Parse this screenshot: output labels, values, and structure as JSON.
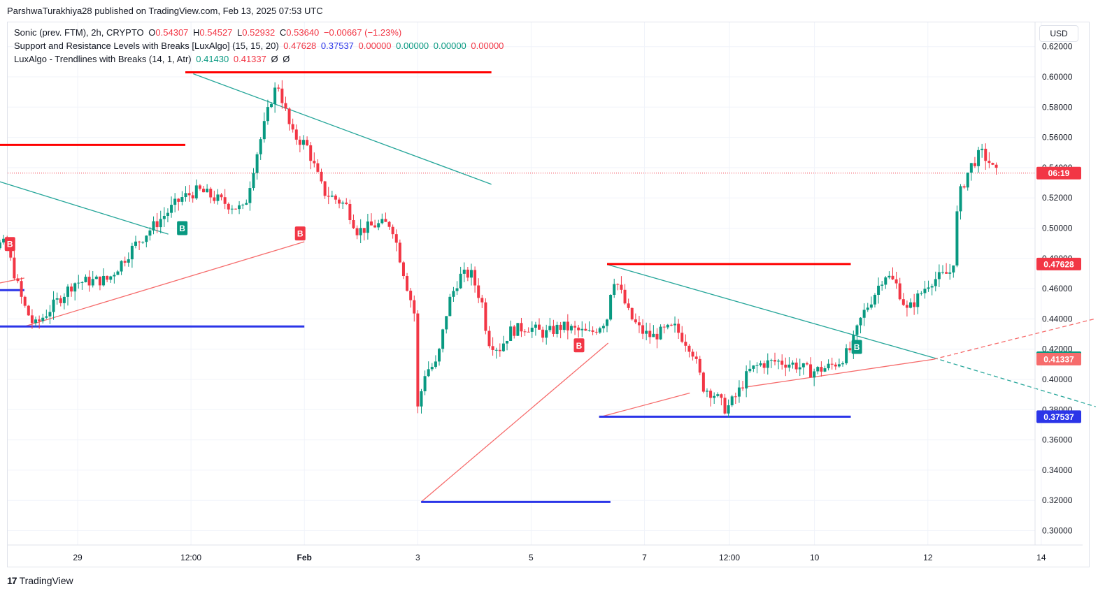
{
  "credit": "ParshwaTurakhiya28 published on TradingView.com, Feb 13, 2025 07:53 UTC",
  "legend": {
    "line1": {
      "symbol": "Sonic (prev. FTM), 2h, CRYPTO",
      "o_label": "O",
      "o": "0.54307",
      "h_label": "H",
      "h": "0.54527",
      "l_label": "L",
      "l": "0.52932",
      "c_label": "C",
      "c": "0.53640",
      "change": "−0.00667 (−1.23%)"
    },
    "line2": {
      "name": "Support and Resistance Levels with Breaks [LuxAlgo] (15, 15, 20)",
      "v1": "0.47628",
      "v2": "0.37537",
      "v3": "0.00000",
      "v4": "0.00000",
      "v5": "0.00000",
      "v6": "0.00000"
    },
    "line3": {
      "name": "LuxAlgo - Trendlines with Breaks (14, 1, Atr)",
      "v1": "0.41430",
      "v2": "0.41337",
      "v3": "Ø",
      "v4": "Ø"
    }
  },
  "currency": "USD",
  "brand": "TradingView",
  "brand_logo": "17",
  "colors": {
    "up": "#089981",
    "down": "#f23645",
    "resistance": "#ff0000",
    "support": "#2b35e8",
    "trend_down": "#26a69a",
    "trend_up": "#f66c6c",
    "grid": "#f0f3fa"
  },
  "chart_data": {
    "type": "candlestick",
    "ylim": [
      0.29,
      0.625
    ],
    "y_ticks": [
      "0.62000",
      "0.60000",
      "0.58000",
      "0.56000",
      "0.54000",
      "0.52000",
      "0.50000",
      "0.48000",
      "0.46000",
      "0.44000",
      "0.42000",
      "0.40000",
      "0.38000",
      "0.36000",
      "0.34000",
      "0.32000",
      "0.30000"
    ],
    "x_ticks": [
      {
        "label": "29",
        "t": 1.0
      },
      {
        "label": "12:00",
        "t": 2.0
      },
      {
        "label": "Feb",
        "t": 3.0
      },
      {
        "label": "3",
        "t": 4.0
      },
      {
        "label": "5",
        "t": 5.0
      },
      {
        "label": "7",
        "t": 6.0
      },
      {
        "label": "12:00",
        "t": 6.75
      },
      {
        "label": "10",
        "t": 7.5
      },
      {
        "label": "12",
        "t": 8.5
      },
      {
        "label": "14",
        "t": 9.5
      }
    ],
    "current_price": 0.5364,
    "price_tags": [
      {
        "text": "06:19",
        "value": 0.5364,
        "color": "#f23645"
      },
      {
        "text": "0.47628",
        "value": 0.47628,
        "color": "#f23645"
      },
      {
        "text": "0.41430",
        "value": 0.4143,
        "color": "#089981"
      },
      {
        "text": "0.41337",
        "value": 0.41337,
        "color": "#f66c6c"
      },
      {
        "text": "0.37537",
        "value": 0.37537,
        "color": "#2b35e8"
      }
    ],
    "levels": [
      {
        "kind": "resistance",
        "value": 0.555,
        "t_start": 0.0,
        "t_end": 1.95
      },
      {
        "kind": "resistance",
        "value": 0.603,
        "t_start": 1.95,
        "t_end": 4.65
      },
      {
        "kind": "resistance",
        "value": 0.47628,
        "t_start": 5.67,
        "t_end": 7.82
      },
      {
        "kind": "support",
        "value": 0.459,
        "t_start": 0.0,
        "t_end": 0.53
      },
      {
        "kind": "support",
        "value": 0.435,
        "t_start": 0.0,
        "t_end": 3.0
      },
      {
        "kind": "support",
        "value": 0.319,
        "t_start": 4.03,
        "t_end": 5.7
      },
      {
        "kind": "support",
        "value": 0.37537,
        "t_start": 5.6,
        "t_end": 7.82
      }
    ],
    "trendlines": [
      {
        "kind": "down",
        "points": [
          [
            0.0,
            0.538
          ],
          [
            1.8,
            0.496
          ]
        ]
      },
      {
        "kind": "down",
        "points": [
          [
            2.02,
            0.602
          ],
          [
            4.65,
            0.529
          ]
        ]
      },
      {
        "kind": "down",
        "points": [
          [
            5.67,
            0.476
          ],
          [
            8.55,
            0.4143
          ]
        ]
      },
      {
        "kind": "down_dashed",
        "points": [
          [
            8.55,
            0.4143
          ],
          [
            9.98,
            0.382
          ]
        ]
      },
      {
        "kind": "up",
        "points": [
          [
            0.0,
            0.459
          ],
          [
            0.53,
            0.467
          ]
        ]
      },
      {
        "kind": "up",
        "points": [
          [
            0.53,
            0.435
          ],
          [
            3.0,
            0.491
          ]
        ]
      },
      {
        "kind": "up",
        "points": [
          [
            4.03,
            0.319
          ],
          [
            5.68,
            0.424
          ]
        ]
      },
      {
        "kind": "up",
        "points": [
          [
            5.6,
            0.375
          ],
          [
            6.4,
            0.391
          ]
        ]
      },
      {
        "kind": "up",
        "points": [
          [
            6.9,
            0.395
          ],
          [
            8.55,
            0.4133
          ]
        ]
      },
      {
        "kind": "up_dashed",
        "points": [
          [
            8.55,
            0.4133
          ],
          [
            9.97,
            0.44
          ]
        ]
      }
    ],
    "markers": [
      {
        "label": "B",
        "t": 0.4,
        "value": 0.4895,
        "color": "#f23645"
      },
      {
        "label": "B",
        "t": 1.92,
        "value": 0.5,
        "color": "#089981"
      },
      {
        "label": "B",
        "t": 2.96,
        "value": 0.4965,
        "color": "#f23645"
      },
      {
        "label": "B",
        "t": 5.42,
        "value": 0.4225,
        "color": "#f23645"
      },
      {
        "label": "B",
        "t": 7.87,
        "value": 0.4215,
        "color": "#089981"
      }
    ],
    "anchors": [
      {
        "t": 0.0,
        "p": 0.47
      },
      {
        "t": 0.05,
        "p": 0.49
      },
      {
        "t": 0.4,
        "p": 0.489
      },
      {
        "t": 0.55,
        "p": 0.45
      },
      {
        "t": 0.65,
        "p": 0.435
      },
      {
        "t": 1.0,
        "p": 0.464
      },
      {
        "t": 1.3,
        "p": 0.466
      },
      {
        "t": 1.55,
        "p": 0.49
      },
      {
        "t": 1.95,
        "p": 0.52
      },
      {
        "t": 2.1,
        "p": 0.525
      },
      {
        "t": 2.35,
        "p": 0.516
      },
      {
        "t": 2.5,
        "p": 0.512
      },
      {
        "t": 2.6,
        "p": 0.546
      },
      {
        "t": 2.75,
        "p": 0.588
      },
      {
        "t": 2.8,
        "p": 0.595
      },
      {
        "t": 2.92,
        "p": 0.562
      },
      {
        "t": 3.05,
        "p": 0.555
      },
      {
        "t": 3.2,
        "p": 0.524
      },
      {
        "t": 3.4,
        "p": 0.515
      },
      {
        "t": 3.5,
        "p": 0.498
      },
      {
        "t": 3.65,
        "p": 0.502
      },
      {
        "t": 3.8,
        "p": 0.503
      },
      {
        "t": 3.87,
        "p": 0.482
      },
      {
        "t": 3.95,
        "p": 0.458
      },
      {
        "t": 4.0,
        "p": 0.445
      },
      {
        "t": 4.03,
        "p": 0.38
      },
      {
        "t": 4.1,
        "p": 0.406
      },
      {
        "t": 4.2,
        "p": 0.41
      },
      {
        "t": 4.3,
        "p": 0.45
      },
      {
        "t": 4.4,
        "p": 0.468
      },
      {
        "t": 4.5,
        "p": 0.47
      },
      {
        "t": 4.6,
        "p": 0.45
      },
      {
        "t": 4.65,
        "p": 0.426
      },
      {
        "t": 4.75,
        "p": 0.42
      },
      {
        "t": 4.85,
        "p": 0.432
      },
      {
        "t": 5.0,
        "p": 0.435
      },
      {
        "t": 5.15,
        "p": 0.43
      },
      {
        "t": 5.3,
        "p": 0.435
      },
      {
        "t": 5.45,
        "p": 0.432
      },
      {
        "t": 5.55,
        "p": 0.43
      },
      {
        "t": 5.7,
        "p": 0.44
      },
      {
        "t": 5.75,
        "p": 0.468
      },
      {
        "t": 5.8,
        "p": 0.462
      },
      {
        "t": 5.9,
        "p": 0.442
      },
      {
        "t": 6.0,
        "p": 0.432
      },
      {
        "t": 6.1,
        "p": 0.428
      },
      {
        "t": 6.2,
        "p": 0.432
      },
      {
        "t": 6.3,
        "p": 0.434
      },
      {
        "t": 6.45,
        "p": 0.42
      },
      {
        "t": 6.55,
        "p": 0.395
      },
      {
        "t": 6.65,
        "p": 0.39
      },
      {
        "t": 6.75,
        "p": 0.38
      },
      {
        "t": 6.85,
        "p": 0.39
      },
      {
        "t": 6.95,
        "p": 0.405
      },
      {
        "t": 7.05,
        "p": 0.41
      },
      {
        "t": 7.2,
        "p": 0.412
      },
      {
        "t": 7.35,
        "p": 0.41
      },
      {
        "t": 7.5,
        "p": 0.405
      },
      {
        "t": 7.65,
        "p": 0.408
      },
      {
        "t": 7.75,
        "p": 0.412
      },
      {
        "t": 7.85,
        "p": 0.42
      },
      {
        "t": 7.95,
        "p": 0.442
      },
      {
        "t": 8.05,
        "p": 0.455
      },
      {
        "t": 8.15,
        "p": 0.47
      },
      {
        "t": 8.25,
        "p": 0.463
      },
      {
        "t": 8.35,
        "p": 0.445
      },
      {
        "t": 8.45,
        "p": 0.455
      },
      {
        "t": 8.55,
        "p": 0.465
      },
      {
        "t": 8.65,
        "p": 0.468
      },
      {
        "t": 8.75,
        "p": 0.472
      },
      {
        "t": 8.8,
        "p": 0.52
      },
      {
        "t": 8.9,
        "p": 0.54
      },
      {
        "t": 9.0,
        "p": 0.55
      },
      {
        "t": 9.08,
        "p": 0.543
      },
      {
        "t": 9.12,
        "p": 0.5364
      }
    ]
  }
}
